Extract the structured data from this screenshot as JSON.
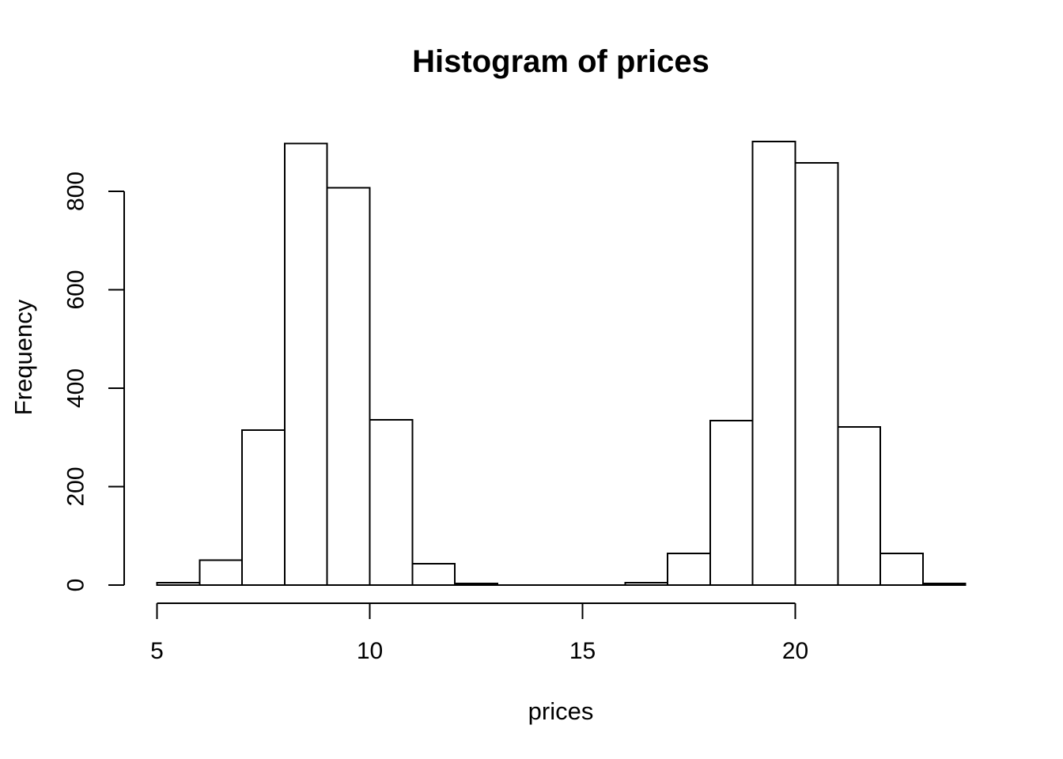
{
  "chart_data": {
    "type": "bar",
    "subtype": "histogram",
    "title": "Histogram of prices",
    "xlabel": "prices",
    "ylabel": "Frequency",
    "bin_width": 1,
    "bin_edges": [
      5,
      6,
      7,
      8,
      9,
      10,
      11,
      12,
      13,
      14,
      15,
      16,
      17,
      18,
      19,
      20,
      21,
      22,
      23,
      24
    ],
    "counts": [
      5,
      51,
      315,
      897,
      807,
      336,
      43,
      3,
      0,
      0,
      0,
      5,
      64,
      334,
      901,
      858,
      321,
      64,
      3
    ],
    "x_ticks": [
      5,
      10,
      15,
      20
    ],
    "y_ticks": [
      0,
      200,
      400,
      600,
      800
    ],
    "x_axis_range": [
      5,
      20
    ],
    "y_axis_range": [
      0,
      800
    ],
    "ylim": [
      0,
      900
    ],
    "grid": false,
    "legend_position": "none",
    "bar_fill": "#ffffff",
    "bar_stroke": "#000000",
    "axis_color": "#000000",
    "text_color": "#000000",
    "background": "#ffffff"
  }
}
